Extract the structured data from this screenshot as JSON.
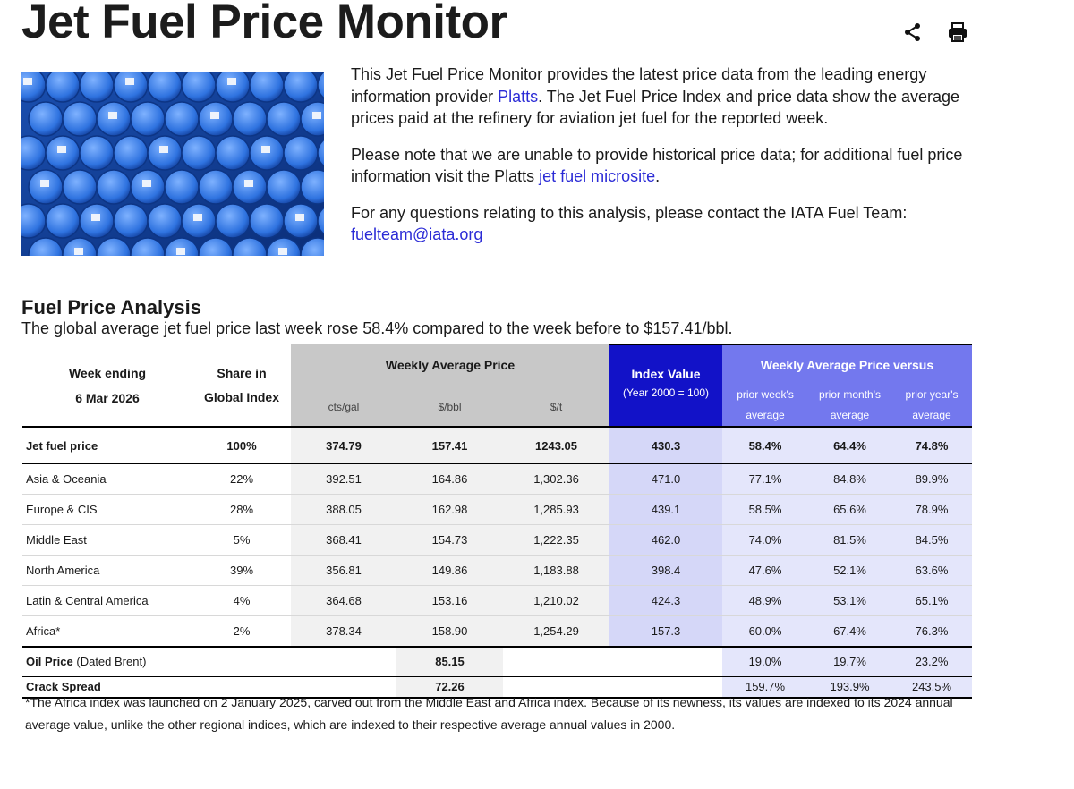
{
  "header": {
    "title": "Jet Fuel Price Monitor"
  },
  "intro": [
    {
      "before": "This Jet Fuel Price Monitor provides the latest price data from the leading energy information provider ",
      "link": "Platts",
      "after": ". The Jet Fuel Price Index and price data show the average prices paid at the refinery for aviation jet fuel for the reported week."
    },
    {
      "before": "Please note that we are unable to provide historical price data; for additional fuel price information visit the Platts ",
      "link": "jet fuel microsite",
      "after": "."
    },
    {
      "before": "For any questions relating to this analysis, please contact the IATA Fuel Team: ",
      "link": "fuelteam@iata.org",
      "after": ""
    }
  ],
  "analysis": {
    "title": "Fuel Price Analysis",
    "summary": "The global average jet fuel price last week rose 58.4% compared to the week before to $157.41/bbl."
  },
  "table": {
    "header": {
      "week_ending": "Week ending",
      "date": "6 Mar 2026",
      "share": "Share in Global Index",
      "weekly_avg": "Weekly Average Price",
      "units": [
        "cts/gal",
        "$/bbl",
        "$/t"
      ],
      "index": "Index Value",
      "index_base": "(Year 2000 = 100)",
      "versus": "Weekly Average Price versus",
      "versus_cols": [
        "prior week's average",
        "prior month's average",
        "prior year's average"
      ]
    },
    "total": [
      "Jet fuel price",
      "100%",
      "374.79",
      "157.41",
      "1243.05",
      "430.3",
      "58.4%",
      "64.4%",
      "74.8%"
    ],
    "rows": [
      [
        "Asia & Oceania",
        "22%",
        "392.51",
        "164.86",
        "1,302.36",
        "471.0",
        "77.1%",
        "84.8%",
        "89.9%"
      ],
      [
        "Europe & CIS",
        "28%",
        "388.05",
        "162.98",
        "1,285.93",
        "439.1",
        "58.5%",
        "65.6%",
        "78.9%"
      ],
      [
        "Middle East",
        "5%",
        "368.41",
        "154.73",
        "1,222.35",
        "462.0",
        "74.0%",
        "81.5%",
        "84.5%"
      ],
      [
        "North America",
        "39%",
        "356.81",
        "149.86",
        "1,183.88",
        "398.4",
        "47.6%",
        "52.1%",
        "63.6%"
      ],
      [
        "Latin & Central America",
        "4%",
        "364.68",
        "153.16",
        "1,210.02",
        "424.3",
        "48.9%",
        "53.1%",
        "65.1%"
      ],
      [
        "Africa*",
        "2%",
        "378.34",
        "158.90",
        "1,254.29",
        "157.3",
        "60.0%",
        "67.4%",
        "76.3%"
      ]
    ],
    "oil": {
      "label": "Oil Price",
      "note": "(Dated Brent)",
      "bbl": "85.15",
      "versus": [
        "19.0%",
        "19.7%",
        "23.2%"
      ]
    },
    "crack": {
      "label": "Crack Spread",
      "bbl": "72.26",
      "versus": [
        "159.7%",
        "193.9%",
        "243.5%"
      ]
    },
    "footnote": "*The Africa index was launched on 2 January 2025, carved out from the Middle East and Africa index. Because of its newness, its values are indexed  to its 2024 annual average value, unlike the other regional indices, which are indexed to their respective average annual values in 2000."
  }
}
